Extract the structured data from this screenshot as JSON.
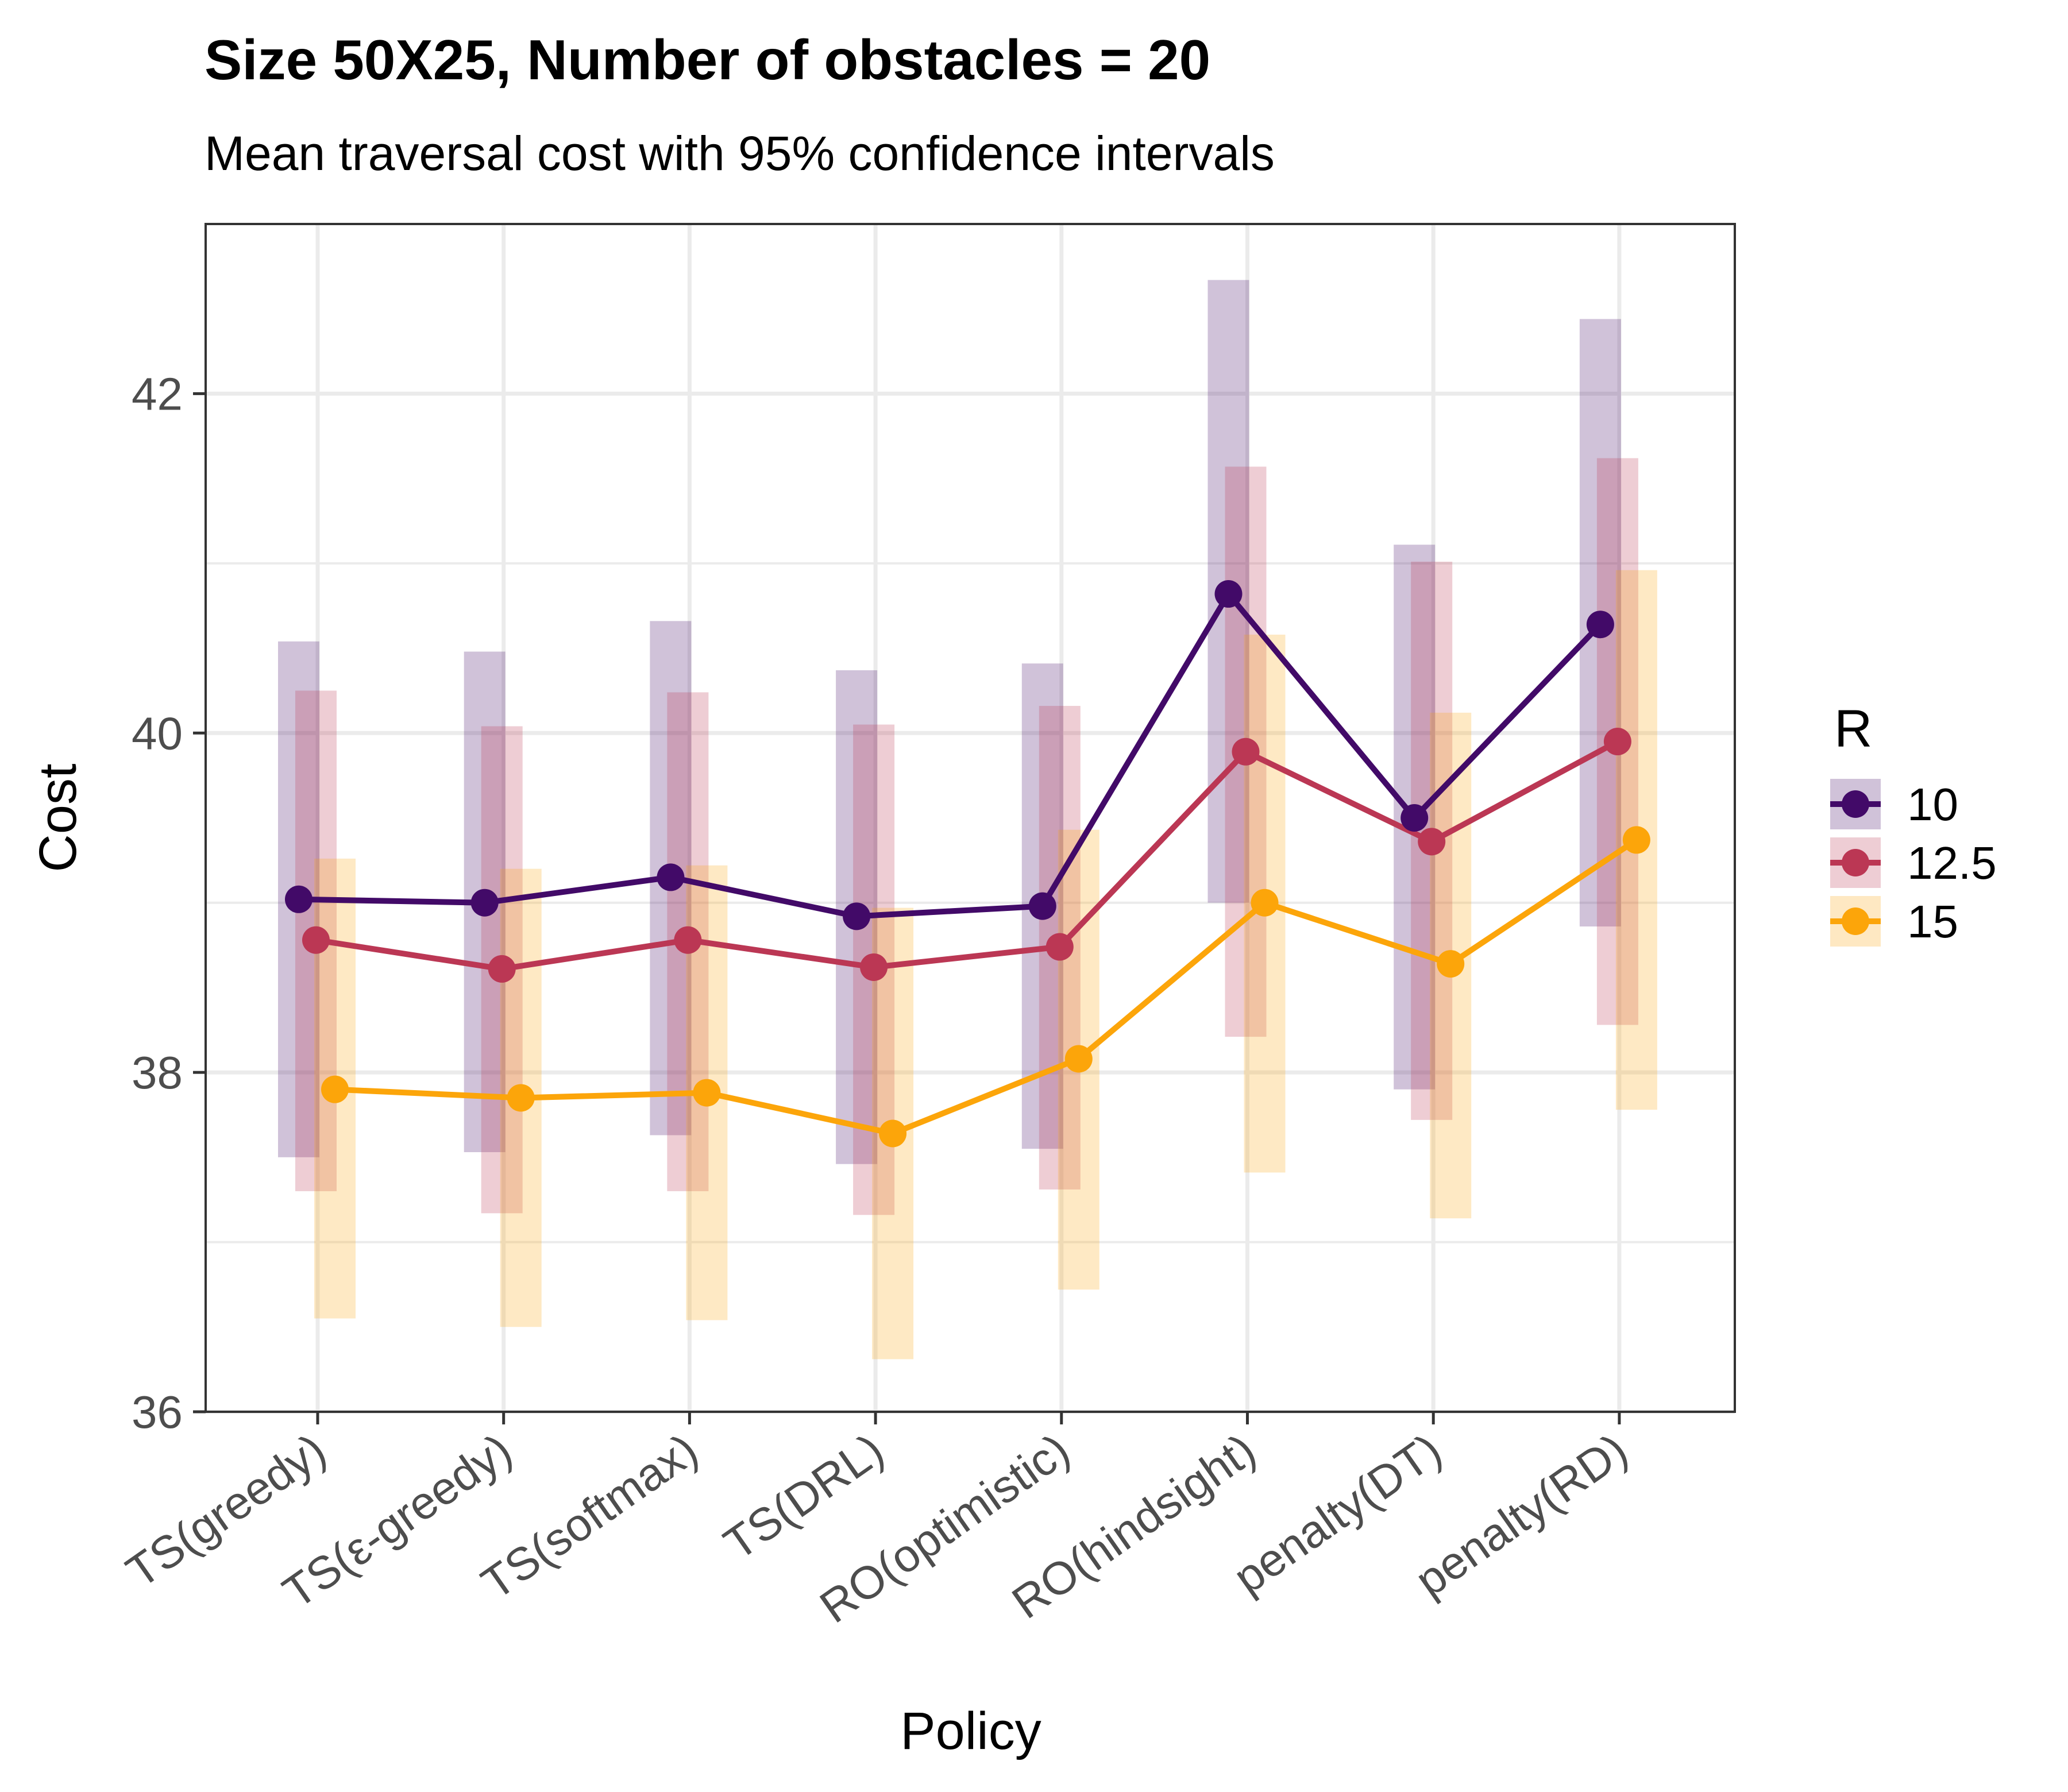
{
  "chart_data": {
    "type": "line",
    "title": "Size 50X25, Number of obstacles = 20",
    "subtitle": "Mean traversal cost with 95% confidence intervals",
    "xlabel": "Policy",
    "ylabel": "Cost",
    "categories": [
      "TS(greedy)",
      "TS(ε-greedy)",
      "TS(softmax)",
      "TS(DRL)",
      "RO(optimistic)",
      "RO(hindsight)",
      "penalty(DT)",
      "penalty(RD)"
    ],
    "ylim": [
      36,
      43
    ],
    "yticks": [
      36,
      38,
      40,
      42
    ],
    "grid": true,
    "legend": {
      "title": "R",
      "position": "right"
    },
    "series": [
      {
        "name": "10",
        "color": "#420a68",
        "values": [
          39.02,
          39.0,
          39.15,
          38.92,
          38.98,
          40.82,
          39.5,
          40.64
        ],
        "lower": [
          37.5,
          37.53,
          37.63,
          37.46,
          37.55,
          39.0,
          37.9,
          38.86
        ],
        "upper": [
          40.54,
          40.48,
          40.66,
          40.37,
          40.41,
          42.67,
          41.11,
          42.44
        ]
      },
      {
        "name": "12.5",
        "color": "#bb3754",
        "values": [
          38.78,
          38.61,
          38.78,
          38.62,
          38.74,
          39.89,
          39.36,
          39.95
        ],
        "lower": [
          37.3,
          37.17,
          37.3,
          37.16,
          37.31,
          38.21,
          37.72,
          38.28
        ],
        "upper": [
          40.25,
          40.04,
          40.24,
          40.05,
          40.16,
          41.57,
          41.01,
          41.62
        ]
      },
      {
        "name": "15",
        "color": "#fca50a",
        "values": [
          37.9,
          37.85,
          37.88,
          37.64,
          38.08,
          39.0,
          38.64,
          39.37
        ],
        "lower": [
          36.55,
          36.5,
          36.54,
          36.31,
          36.72,
          37.41,
          37.14,
          37.78
        ],
        "upper": [
          39.26,
          39.2,
          39.22,
          38.97,
          39.43,
          40.58,
          40.12,
          40.96
        ]
      }
    ]
  }
}
